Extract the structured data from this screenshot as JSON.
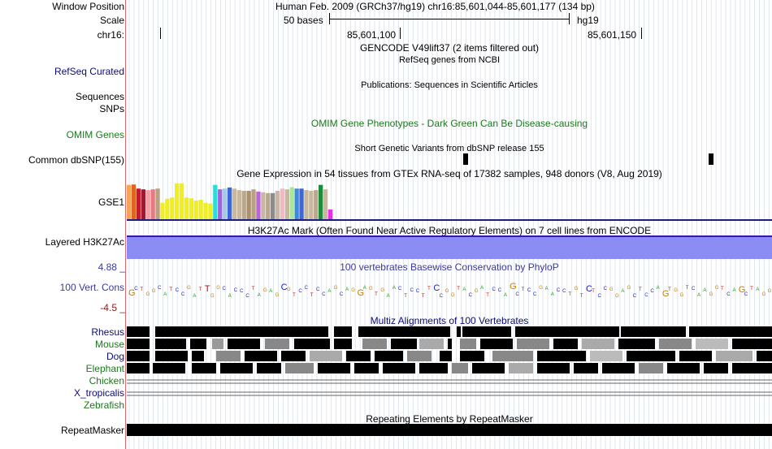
{
  "colors": {
    "refseq": "#0c0c78",
    "omim": "#1a7a1a",
    "phylop": "#3a3aa0",
    "phylop_min": "#8b1a1a",
    "rhesus": "#0c0c78",
    "mouse": "#1a7a1a",
    "dog": "#0c0c78",
    "elephant": "#1a7a1a",
    "chicken": "#1a7a1a",
    "xtrop": "#0c0c78",
    "zebrafish": "#1a7a1a",
    "h3k27ac_fill": "#8c8cf5",
    "h3k27ac_line": "#3a16b0",
    "gtex_bottom": "#1d1d7e",
    "divider": "#e06a6a"
  },
  "header": {
    "window_position_label": "Window Position",
    "window_position_value": "Human Feb. 2009 (GRCh37/hg19)   chr16:85,601,044-85,601,177 (134 bp)",
    "scale_label": "Scale",
    "scale_bases": "50 bases",
    "scale_assembly": "hg19",
    "chrom_label": "chr16:",
    "coord_1": "85,601,100",
    "coord_2": "85,601,150"
  },
  "tracks": {
    "gencode": {
      "title": "GENCODE V49lift37 (2 items filtered out)"
    },
    "refseq": {
      "label": "RefSeq Curated",
      "title": "RefSeq genes from NCBI"
    },
    "publications": {
      "label_1": "Sequences",
      "label_2": "SNPs",
      "title": "Publications: Sequences in Scientific Articles"
    },
    "omim": {
      "label": "OMIM Genes",
      "title": "OMIM Gene Phenotypes - Dark Green Can Be Disease-causing"
    },
    "dbsnp": {
      "label": "Common dbSNP(155)",
      "title": "Short Genetic Variants from dbSNP release 155"
    },
    "gtex": {
      "label": "GSE1",
      "title": "Gene Expression in 54 tissues from GTEx RNA-seq of 17382 samples, 948 donors (V8, Aug 2019)",
      "bars": [
        {
          "color": "#f5a35a",
          "value": 0.92
        },
        {
          "color": "#e0651d",
          "value": 0.93
        },
        {
          "color": "#c11c2c",
          "value": 0.82
        },
        {
          "color": "#9f1730",
          "value": 0.8
        },
        {
          "color": "#f3a0a4",
          "value": 0.78
        },
        {
          "color": "#e47a84",
          "value": 0.8
        },
        {
          "color": "#b8a080",
          "value": 0.82
        },
        {
          "color": "#eeee22",
          "value": 0.44
        },
        {
          "color": "#eeee22",
          "value": 0.55
        },
        {
          "color": "#eeee22",
          "value": 0.58
        },
        {
          "color": "#eeee22",
          "value": 0.96
        },
        {
          "color": "#eeee22",
          "value": 0.96
        },
        {
          "color": "#eeee22",
          "value": 0.58
        },
        {
          "color": "#eeee22",
          "value": 0.56
        },
        {
          "color": "#eeee22",
          "value": 0.5
        },
        {
          "color": "#eeee22",
          "value": 0.52
        },
        {
          "color": "#eeee22",
          "value": 0.44
        },
        {
          "color": "#eeee22",
          "value": 0.42
        },
        {
          "color": "#2adcdc",
          "value": 0.92
        },
        {
          "color": "#9a66d8",
          "value": 0.8
        },
        {
          "color": "#a8c8e8",
          "value": 0.82
        },
        {
          "color": "#3d66d8",
          "value": 0.85
        },
        {
          "color": "#c8b8a0",
          "value": 0.82
        },
        {
          "color": "#c8b8a0",
          "value": 0.78
        },
        {
          "color": "#b8a890",
          "value": 0.76
        },
        {
          "color": "#a89070",
          "value": 0.76
        },
        {
          "color": "#b8a080",
          "value": 0.8
        },
        {
          "color": "#ba66d8",
          "value": 0.74
        },
        {
          "color": "#c8b8a0",
          "value": 0.72
        },
        {
          "color": "#b8a890",
          "value": 0.7
        },
        {
          "color": "#8c8c8c",
          "value": 0.7
        },
        {
          "color": "#c8b8a0",
          "value": 0.76
        },
        {
          "color": "#f3b8c4",
          "value": 0.82
        },
        {
          "color": "#c8b8a0",
          "value": 0.8
        },
        {
          "color": "#a8e890",
          "value": 0.86
        },
        {
          "color": "#3d8ad8",
          "value": 0.82
        },
        {
          "color": "#3d66d8",
          "value": 0.82
        },
        {
          "color": "#c8b8a0",
          "value": 0.78
        },
        {
          "color": "#c8b8a0",
          "value": 0.76
        },
        {
          "color": "#b8a890",
          "value": 0.78
        },
        {
          "color": "#1d8c3d",
          "value": 0.92
        },
        {
          "color": "#c8b8a0",
          "value": 0.8
        },
        {
          "color": "#e830e8",
          "value": 0.26
        }
      ]
    },
    "h3k27ac": {
      "label": "Layered H3K27Ac",
      "title": "H3K27Ac Mark (Often Found Near Active Regulatory Elements) on 7 cell lines from ENCODE"
    },
    "phylop": {
      "label": "100 Vert. Cons",
      "max_label": "4.88 _",
      "min_label": "-4.5 _",
      "title": "100 vertebrates Basewise Conservation by PhyloP"
    },
    "multiz": {
      "title": "Multiz Alignments of 100 Vertebrates",
      "species": [
        "Rhesus",
        "Mouse",
        "Dog",
        "Elephant",
        "Chicken",
        "X_tropicalis",
        "Zebrafish"
      ]
    },
    "repeatmasker": {
      "label": "RepeatMasker",
      "title": "Repeating Elements by RepeatMasker"
    }
  }
}
